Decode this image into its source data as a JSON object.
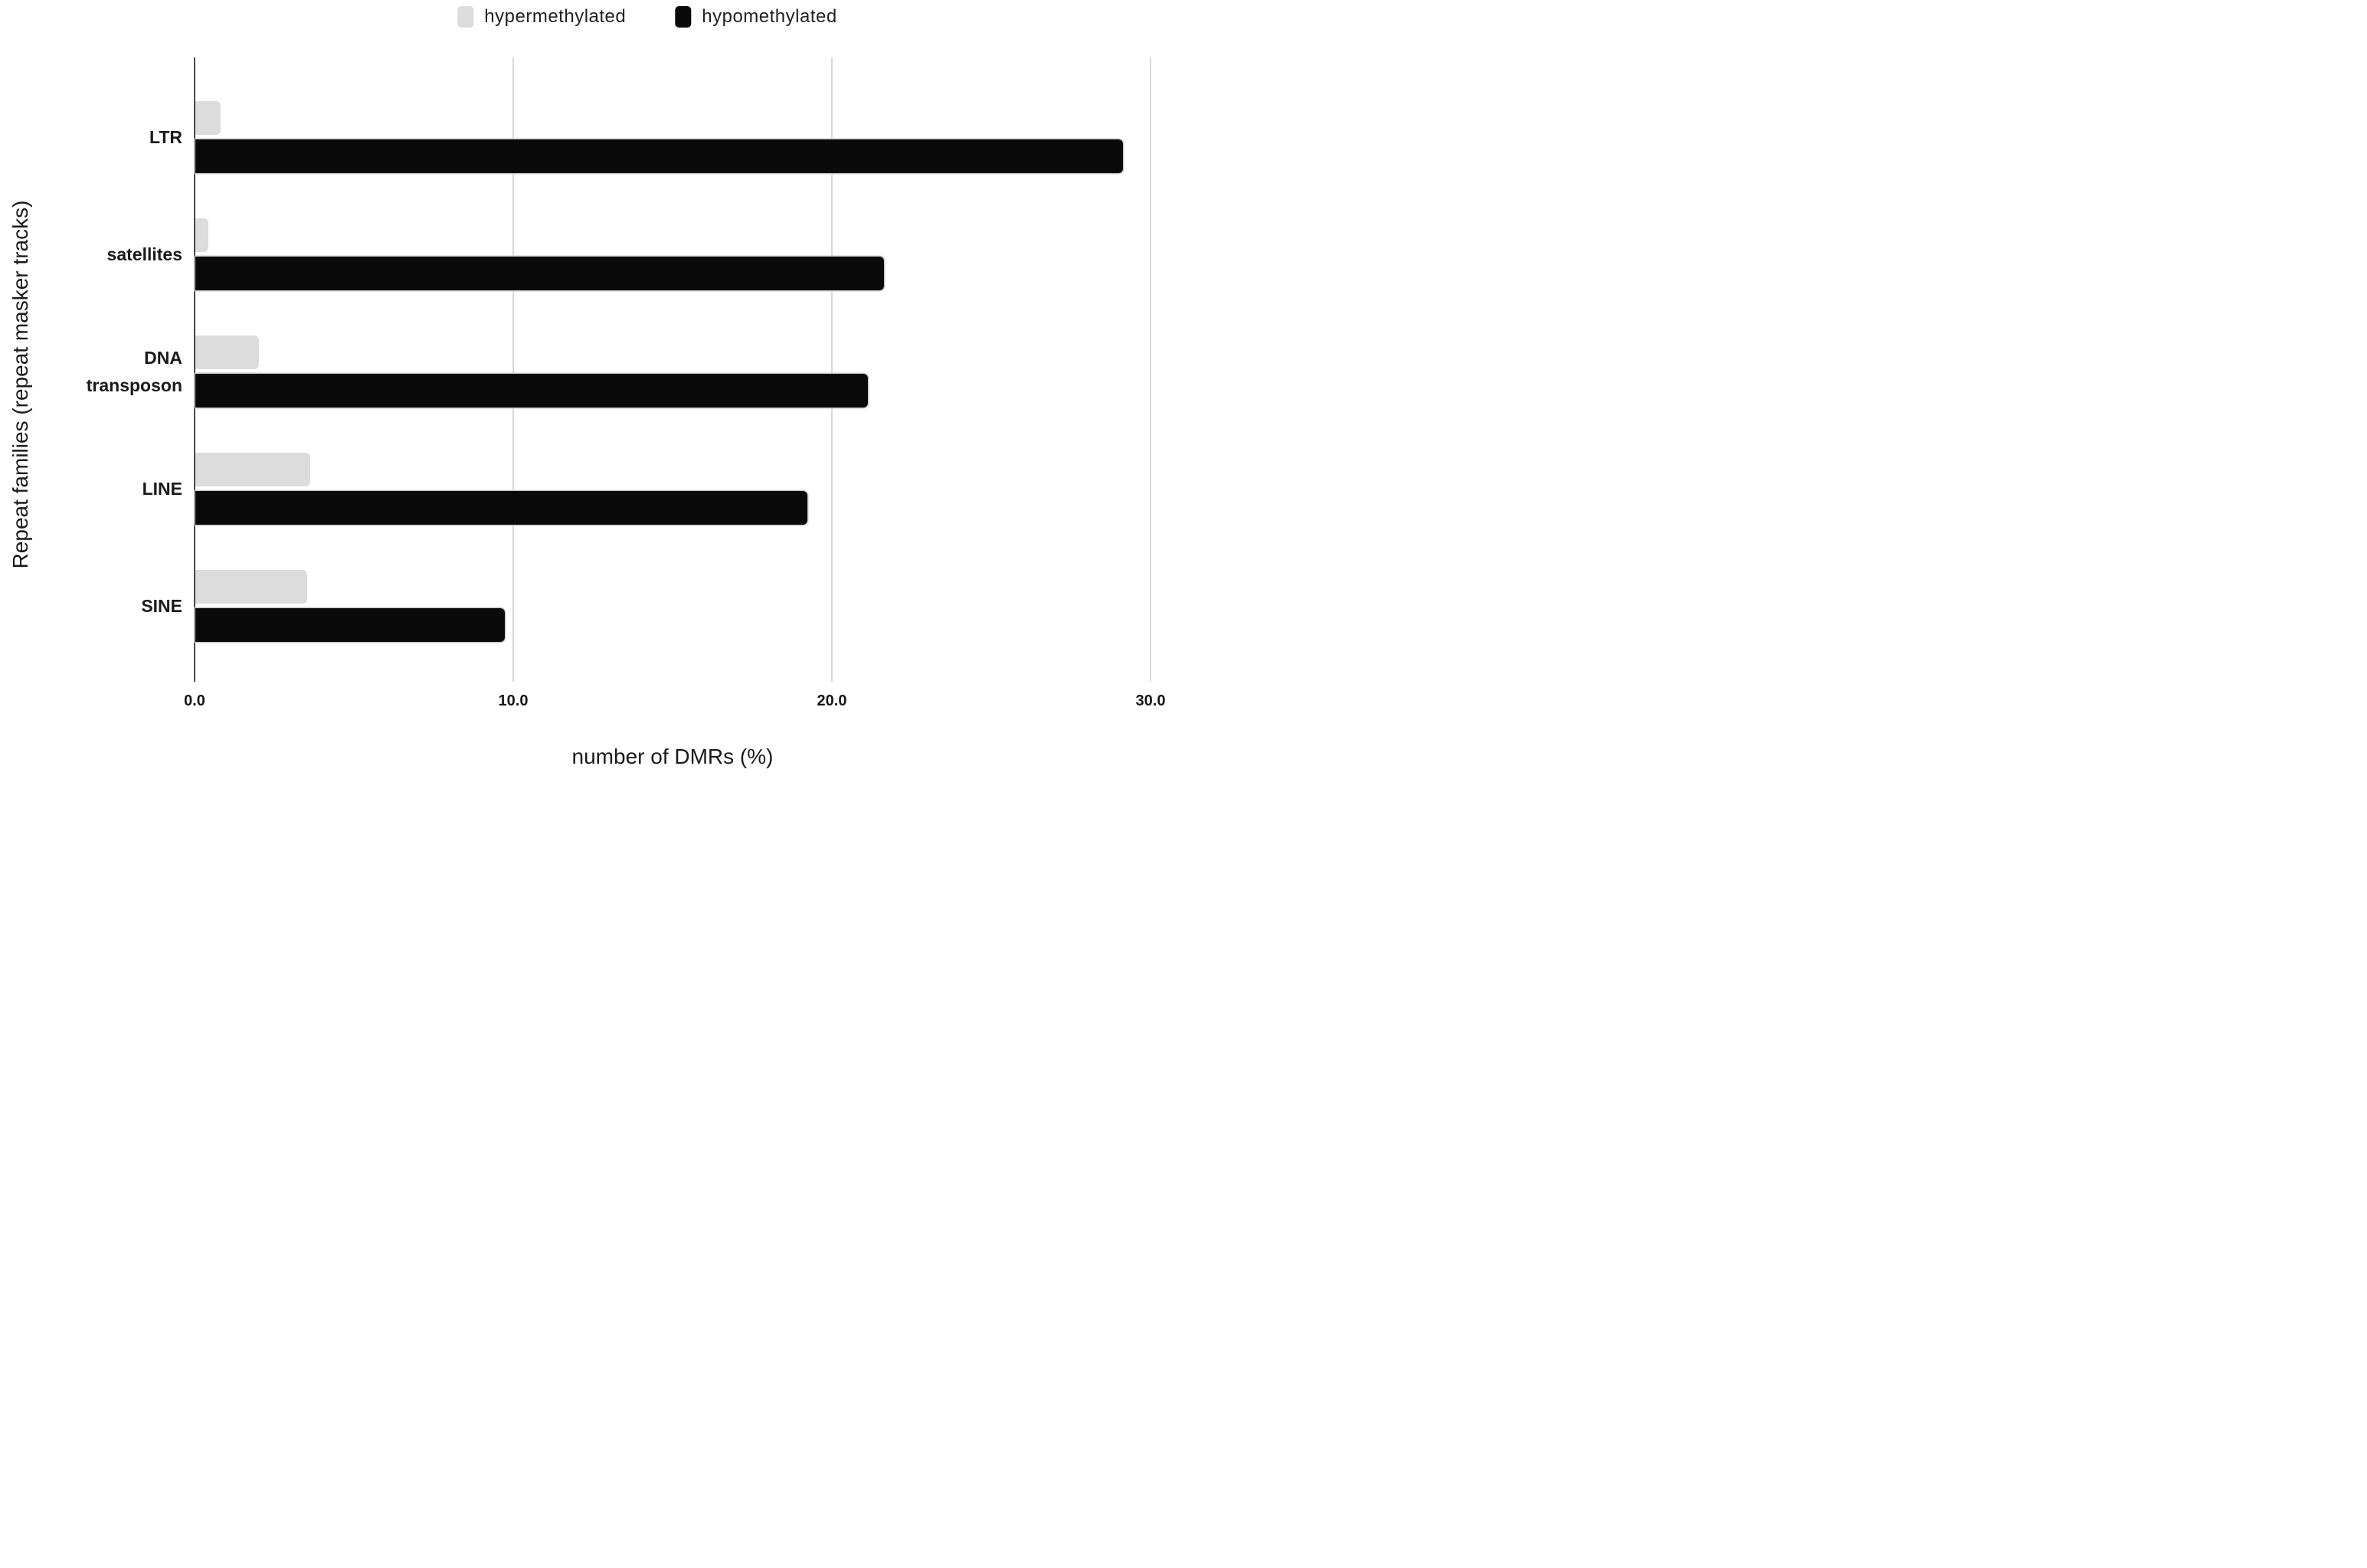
{
  "legend": {
    "items": [
      {
        "label": "hypermethylated",
        "color": "#dcdcdc"
      },
      {
        "label": "hypomethylated",
        "color": "#0a0a0a"
      }
    ]
  },
  "axes": {
    "x_title": "number of DMRs (%)",
    "y_title": "Repeat families (repeat masker tracks)"
  },
  "chart_data": {
    "type": "bar",
    "orientation": "horizontal",
    "title": "",
    "categories": [
      "LTR",
      "satellites",
      "DNA transposon",
      "LINE",
      "SINE"
    ],
    "category_label_lines": [
      [
        "LTR"
      ],
      [
        "satellites"
      ],
      [
        "DNA",
        "transposon"
      ],
      [
        "LINE"
      ],
      [
        "SINE"
      ]
    ],
    "series": [
      {
        "name": "hypermethylated",
        "color": "#dcdcdc",
        "values": [
          0.8,
          0.4,
          2.0,
          3.6,
          3.5
        ]
      },
      {
        "name": "hypomethylated",
        "color": "#0a0a0a",
        "values": [
          29.1,
          21.6,
          21.1,
          19.2,
          9.7
        ]
      }
    ],
    "xlabel": "number of DMRs (%)",
    "ylabel": "Repeat families (repeat masker tracks)",
    "xlim": [
      0,
      31
    ],
    "xticks": [
      0,
      10,
      20,
      30
    ],
    "xtick_labels": [
      "0.0",
      "10.0",
      "20.0",
      "30.0"
    ],
    "grid": true,
    "legend_position": "top",
    "bar_color_hypermethylated": "#dcdcdc",
    "bar_color_hypomethylated": "#0a0a0a",
    "gridline_color": "#d9d9d9",
    "axis_line_color": "#4a4a4a"
  }
}
